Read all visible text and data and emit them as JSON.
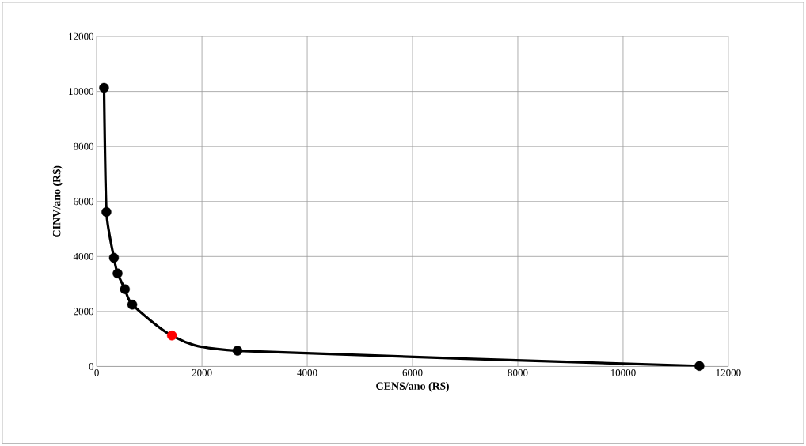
{
  "chart_data": {
    "type": "line",
    "xlabel": "CENS/ano (R$)",
    "ylabel": "CINV/ano (R$)",
    "series": [
      {
        "color": "#000000",
        "x": [
          140,
          185,
          328,
          397,
          536,
          676,
          1429,
          2675,
          11450
        ],
        "values": [
          10134,
          5620,
          3954,
          3383,
          2811,
          2249,
          1126,
          571,
          20
        ],
        "colors": [
          "#000000",
          "#000000",
          "#000000",
          "#000000",
          "#000000",
          "#000000",
          "#ff0000",
          "#000000",
          "#000000"
        ]
      }
    ],
    "xlim": [
      0,
      12000
    ],
    "ylim": [
      0,
      12000
    ],
    "xticks": [
      0,
      2000,
      4000,
      6000,
      8000,
      10000,
      12000
    ],
    "yticks": [
      0,
      2000,
      4000,
      6000,
      8000,
      10000,
      12000
    ],
    "grid": true,
    "marker": "circle",
    "line_style": "solid",
    "legend": false
  }
}
